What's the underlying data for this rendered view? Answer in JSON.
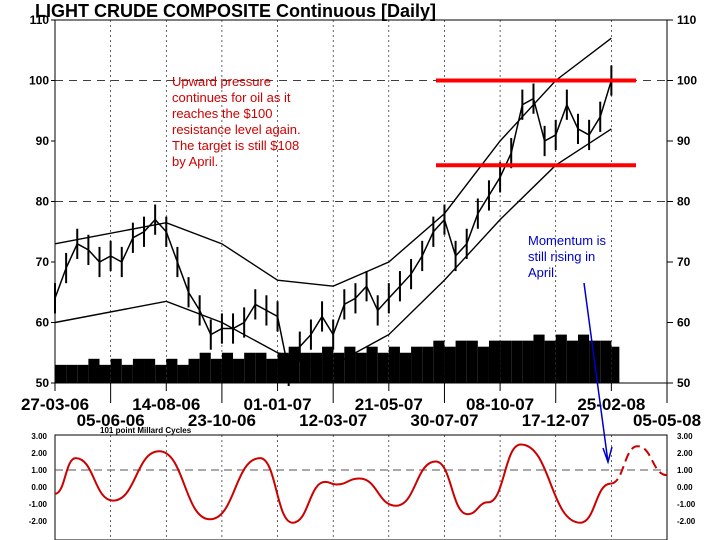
{
  "chart_data": [
    {
      "type": "bar",
      "title": "LIGHT CRUDE COMPOSITE Continuous  [Daily]",
      "ylim": [
        50,
        110
      ],
      "yticks": [
        "50",
        "60",
        "70",
        "80",
        "90",
        "100",
        "110"
      ],
      "xlim": [
        "27-03-06",
        "05-05-08"
      ],
      "xticks_row1": [
        "27-03-06",
        "14-08-06",
        "01-01-07",
        "21-05-07",
        "08-10-07",
        "25-02-08"
      ],
      "xticks_row2": [
        "05-06-06",
        "23-10-06",
        "12-03-07",
        "30-07-07",
        "17-12-07",
        "05-05-08"
      ],
      "grid": true,
      "price": {
        "dates": [
          "27-03-06",
          "10-04-06",
          "24-04-06",
          "08-05-06",
          "22-05-06",
          "05-06-06",
          "19-06-06",
          "03-07-06",
          "17-07-06",
          "31-07-06",
          "14-08-06",
          "28-08-06",
          "11-09-06",
          "25-09-06",
          "09-10-06",
          "23-10-06",
          "06-11-06",
          "20-11-06",
          "04-12-06",
          "18-12-06",
          "01-01-07",
          "15-01-07",
          "29-01-07",
          "12-02-07",
          "26-02-07",
          "12-03-07",
          "26-03-07",
          "09-04-07",
          "23-04-07",
          "07-05-07",
          "21-05-07",
          "04-06-07",
          "18-06-07",
          "02-07-07",
          "16-07-07",
          "30-07-07",
          "13-08-07",
          "27-08-07",
          "10-09-07",
          "24-09-07",
          "08-10-07",
          "22-10-07",
          "05-11-07",
          "19-11-07",
          "03-12-07",
          "17-12-07",
          "31-12-07",
          "14-01-08",
          "28-01-08",
          "11-02-08",
          "25-02-08"
        ],
        "close": [
          64,
          69,
          73,
          72,
          70,
          71,
          70,
          74,
          75,
          77,
          75,
          70,
          65,
          62,
          58,
          59,
          59,
          60,
          63,
          62,
          61,
          52,
          56,
          58,
          61,
          58,
          63,
          64,
          66,
          62,
          64,
          66,
          68,
          71,
          75,
          77,
          71,
          73,
          78,
          81,
          84,
          88,
          96,
          97,
          90,
          91,
          96,
          92,
          91,
          94,
          100
        ]
      },
      "volume": [
        53,
        53,
        53,
        54,
        53,
        54,
        53,
        54,
        54,
        53,
        54,
        53,
        54,
        55,
        54,
        55,
        54,
        55,
        55,
        54,
        55,
        56,
        55,
        55,
        56,
        55,
        56,
        55,
        56,
        55,
        56,
        55,
        56,
        56,
        57,
        56,
        57,
        57,
        56,
        57,
        57,
        57,
        57,
        58,
        57,
        58,
        57,
        58,
        57,
        57,
        56
      ],
      "channel_upper": {
        "dates": [
          "27-03-06",
          "14-08-06",
          "23-10-06",
          "01-01-07",
          "12-03-07",
          "21-05-07",
          "30-07-07",
          "08-10-07",
          "17-12-07",
          "25-02-08"
        ],
        "values": [
          73,
          76.5,
          73,
          67,
          66,
          70,
          78,
          90,
          100,
          107
        ]
      },
      "channel_lower": {
        "dates": [
          "27-03-06",
          "14-08-06",
          "23-10-06",
          "01-01-07",
          "12-03-07",
          "21-05-07",
          "30-07-07",
          "08-10-07",
          "17-12-07",
          "25-02-08"
        ],
        "values": [
          60,
          63.5,
          60,
          55,
          53,
          58,
          67,
          77,
          86,
          92
        ]
      },
      "resistance_levels": [
        100,
        86
      ],
      "resistance_color": "#ff0000",
      "annotation": {
        "lines": [
          "Upward pressure",
          "continues for oil as it",
          "reaches the $100",
          "resistance level again.",
          "The target is still $108",
          "by April."
        ],
        "color": "#d00000"
      }
    },
    {
      "type": "line",
      "title": "101 point Millard Cycles",
      "ylim": [
        -2.5,
        3
      ],
      "yticks": [
        "-2.00",
        "-1.00",
        "0.00",
        "1.00",
        "2.00",
        "3.00"
      ],
      "reference_line": 1.0,
      "color": "#cc0000",
      "actual": {
        "dates": [
          "27-03-06",
          "22-04-06",
          "08-06-06",
          "05-08-06",
          "08-10-06",
          "10-12-06",
          "20-01-07",
          "02-03-07",
          "16-03-07",
          "14-04-07",
          "30-05-07",
          "19-07-07",
          "28-08-07",
          "23-09-07",
          "03-11-07",
          "17-01-08",
          "24-02-08"
        ],
        "values": [
          -0.4,
          1.7,
          -0.8,
          2.1,
          -1.9,
          1.7,
          -2.1,
          0.3,
          0.15,
          0.5,
          -1.1,
          1.5,
          -1.6,
          -0.9,
          2.5,
          -2.1,
          0.2
        ]
      },
      "projected": {
        "dates": [
          "24-02-08",
          "29-03-08",
          "05-05-08"
        ],
        "values": [
          0.2,
          2.4,
          0.7
        ]
      },
      "annotation": {
        "lines": [
          "Momentum is",
          "still rising in",
          "April."
        ],
        "color": "#0000cc"
      }
    }
  ]
}
